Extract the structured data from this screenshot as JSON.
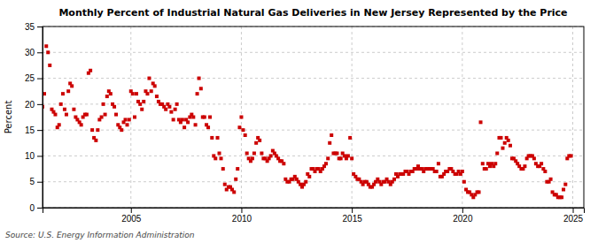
{
  "chart_data": {
    "type": "scatter",
    "title": "Monthly Percent of Industrial Natural Gas Deliveries in New Jersey Represented by the Price",
    "ylabel": "Percent",
    "source": "Source: U.S. Energy Information Administration",
    "xlim": [
      2001.0,
      2025.5
    ],
    "ylim": [
      0,
      35
    ],
    "xticks": [
      2005,
      2010,
      2015,
      2020,
      2025
    ],
    "yticks": [
      0,
      5,
      10,
      15,
      20,
      25,
      30,
      35
    ],
    "grid": true,
    "color": "#cc0000",
    "marker": "square",
    "x": [
      2001.0,
      2001.08,
      2001.17,
      2001.25,
      2001.33,
      2001.42,
      2001.5,
      2001.58,
      2001.67,
      2001.75,
      2001.83,
      2001.92,
      2002.0,
      2002.08,
      2002.17,
      2002.25,
      2002.33,
      2002.42,
      2002.5,
      2002.58,
      2002.67,
      2002.75,
      2002.83,
      2002.92,
      2003.0,
      2003.08,
      2003.17,
      2003.25,
      2003.33,
      2003.42,
      2003.5,
      2003.58,
      2003.67,
      2003.75,
      2003.83,
      2003.92,
      2004.0,
      2004.08,
      2004.17,
      2004.25,
      2004.33,
      2004.42,
      2004.5,
      2004.58,
      2004.67,
      2004.75,
      2004.83,
      2004.92,
      2005.0,
      2005.08,
      2005.17,
      2005.25,
      2005.33,
      2005.42,
      2005.5,
      2005.58,
      2005.67,
      2005.75,
      2005.83,
      2005.92,
      2006.0,
      2006.08,
      2006.17,
      2006.25,
      2006.33,
      2006.42,
      2006.5,
      2006.58,
      2006.67,
      2006.75,
      2006.83,
      2006.92,
      2007.0,
      2007.08,
      2007.17,
      2007.25,
      2007.33,
      2007.42,
      2007.5,
      2007.58,
      2007.67,
      2007.75,
      2007.83,
      2007.92,
      2008.0,
      2008.08,
      2008.17,
      2008.25,
      2008.33,
      2008.42,
      2008.5,
      2008.58,
      2008.67,
      2008.75,
      2008.83,
      2008.92,
      2009.0,
      2009.08,
      2009.17,
      2009.25,
      2009.33,
      2009.42,
      2009.5,
      2009.58,
      2009.67,
      2009.75,
      2009.83,
      2009.92,
      2010.0,
      2010.08,
      2010.17,
      2010.25,
      2010.33,
      2010.42,
      2010.5,
      2010.58,
      2010.67,
      2010.75,
      2010.83,
      2010.92,
      2011.0,
      2011.08,
      2011.17,
      2011.25,
      2011.33,
      2011.42,
      2011.5,
      2011.58,
      2011.67,
      2011.75,
      2011.83,
      2011.92,
      2012.0,
      2012.08,
      2012.17,
      2012.25,
      2012.33,
      2012.42,
      2012.5,
      2012.58,
      2012.67,
      2012.75,
      2012.83,
      2012.92,
      2013.0,
      2013.08,
      2013.17,
      2013.25,
      2013.33,
      2013.42,
      2013.5,
      2013.58,
      2013.67,
      2013.75,
      2013.83,
      2013.92,
      2014.0,
      2014.08,
      2014.17,
      2014.25,
      2014.33,
      2014.42,
      2014.5,
      2014.58,
      2014.67,
      2014.75,
      2014.83,
      2014.92,
      2015.0,
      2015.08,
      2015.17,
      2015.25,
      2015.33,
      2015.42,
      2015.5,
      2015.58,
      2015.67,
      2015.75,
      2015.83,
      2015.92,
      2016.0,
      2016.08,
      2016.17,
      2016.25,
      2016.33,
      2016.42,
      2016.5,
      2016.58,
      2016.67,
      2016.75,
      2016.83,
      2016.92,
      2017.0,
      2017.08,
      2017.17,
      2017.25,
      2017.33,
      2017.42,
      2017.5,
      2017.58,
      2017.67,
      2017.75,
      2017.83,
      2017.92,
      2018.0,
      2018.08,
      2018.17,
      2018.25,
      2018.33,
      2018.42,
      2018.5,
      2018.58,
      2018.67,
      2018.75,
      2018.83,
      2018.92,
      2019.0,
      2019.08,
      2019.17,
      2019.25,
      2019.33,
      2019.42,
      2019.5,
      2019.58,
      2019.67,
      2019.75,
      2019.83,
      2019.92,
      2020.0,
      2020.08,
      2020.17,
      2020.25,
      2020.33,
      2020.42,
      2020.5,
      2020.58,
      2020.67,
      2020.75,
      2020.83,
      2020.92,
      2021.0,
      2021.08,
      2021.17,
      2021.25,
      2021.33,
      2021.42,
      2021.5,
      2021.58,
      2021.67,
      2021.75,
      2021.83,
      2021.92,
      2022.0,
      2022.08,
      2022.17,
      2022.25,
      2022.33,
      2022.42,
      2022.5,
      2022.58,
      2022.67,
      2022.75,
      2022.83,
      2022.92,
      2023.0,
      2023.08,
      2023.17,
      2023.25,
      2023.33,
      2023.42,
      2023.5,
      2023.58,
      2023.67,
      2023.75,
      2023.83,
      2023.92,
      2024.0,
      2024.08,
      2024.17,
      2024.25,
      2024.33,
      2024.42,
      2024.5,
      2024.58,
      2024.67,
      2024.75,
      2024.83,
      2024.92
    ],
    "values": [
      19.5,
      22.0,
      31.2,
      30.0,
      27.5,
      19.0,
      18.5,
      18.0,
      15.5,
      16.0,
      20.0,
      22.0,
      19.0,
      18.0,
      22.5,
      24.0,
      23.5,
      19.0,
      17.5,
      17.0,
      16.5,
      16.0,
      17.5,
      18.0,
      18.0,
      26.0,
      26.5,
      15.0,
      13.5,
      13.0,
      15.0,
      17.0,
      17.5,
      20.0,
      18.0,
      21.5,
      22.5,
      22.0,
      20.0,
      19.5,
      18.0,
      16.0,
      15.5,
      15.0,
      16.5,
      17.0,
      16.0,
      17.0,
      22.5,
      22.0,
      17.5,
      22.0,
      20.5,
      20.0,
      19.0,
      20.5,
      22.5,
      22.0,
      25.0,
      22.5,
      24.0,
      23.5,
      21.5,
      20.5,
      20.0,
      20.0,
      19.5,
      19.0,
      20.0,
      19.5,
      18.5,
      17.0,
      19.0,
      20.0,
      17.0,
      16.5,
      17.0,
      15.5,
      17.0,
      16.5,
      17.5,
      18.0,
      17.5,
      16.0,
      22.0,
      25.0,
      23.0,
      17.5,
      17.5,
      16.0,
      15.5,
      17.5,
      13.5,
      10.0,
      9.5,
      13.5,
      10.5,
      9.5,
      7.5,
      4.5,
      3.5,
      4.0,
      4.0,
      3.5,
      3.0,
      5.5,
      7.5,
      15.5,
      17.5,
      15.0,
      14.0,
      10.5,
      9.5,
      9.0,
      9.5,
      10.5,
      12.5,
      13.5,
      13.0,
      10.5,
      9.5,
      9.5,
      9.0,
      9.5,
      10.0,
      11.0,
      10.5,
      10.0,
      9.5,
      9.0,
      9.0,
      8.5,
      5.5,
      5.0,
      5.0,
      5.5,
      5.5,
      6.0,
      5.5,
      5.0,
      4.5,
      4.0,
      4.5,
      5.0,
      6.5,
      6.0,
      7.5,
      7.5,
      7.0,
      7.5,
      7.5,
      7.0,
      7.5,
      8.0,
      8.5,
      9.5,
      12.5,
      14.0,
      10.5,
      10.5,
      10.5,
      9.5,
      9.5,
      10.5,
      10.0,
      9.5,
      10.0,
      13.5,
      9.5,
      6.5,
      6.0,
      5.5,
      5.5,
      5.0,
      4.5,
      5.0,
      5.0,
      4.5,
      4.0,
      4.0,
      4.5,
      5.0,
      5.5,
      5.0,
      4.5,
      5.0,
      5.0,
      5.5,
      5.0,
      4.5,
      5.0,
      5.5,
      6.5,
      6.0,
      6.5,
      6.5,
      6.5,
      7.0,
      7.0,
      6.5,
      7.0,
      7.0,
      7.5,
      7.5,
      8.0,
      7.5,
      7.5,
      7.0,
      7.5,
      7.5,
      7.5,
      7.5,
      7.5,
      7.0,
      7.0,
      8.5,
      6.0,
      6.0,
      6.5,
      7.0,
      7.0,
      7.5,
      7.5,
      7.0,
      6.5,
      6.5,
      7.0,
      6.5,
      7.0,
      5.0,
      3.5,
      3.0,
      3.0,
      2.5,
      2.0,
      2.5,
      3.0,
      3.0,
      16.5,
      8.5,
      7.5,
      7.5,
      8.5,
      8.0,
      8.5,
      8.0,
      8.5,
      10.5,
      13.5,
      13.5,
      11.5,
      12.5,
      13.5,
      13.0,
      12.0,
      9.5,
      9.5,
      9.0,
      8.5,
      8.0,
      7.5,
      7.5,
      8.0,
      9.5,
      10.0,
      10.0,
      10.0,
      9.5,
      8.5,
      8.0,
      8.0,
      8.5,
      7.5,
      7.0,
      5.0,
      5.0,
      5.5,
      3.0,
      2.5,
      2.5,
      2.0,
      2.0,
      2.0,
      3.5,
      4.5,
      9.5,
      10.0,
      10.0
    ]
  }
}
